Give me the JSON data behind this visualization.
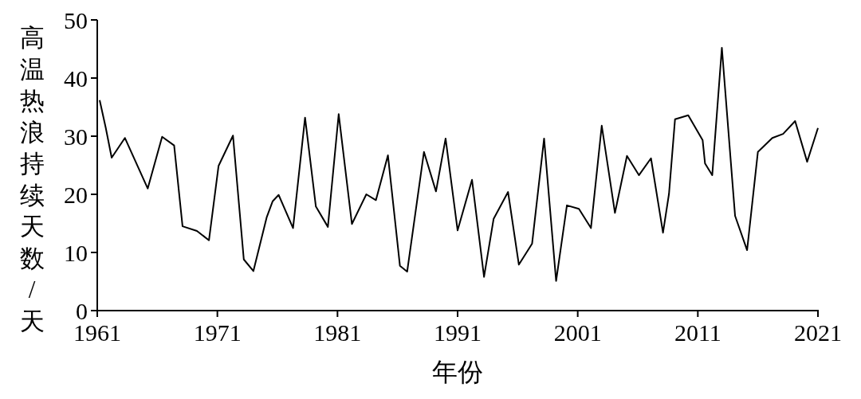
{
  "chart_data": {
    "type": "line",
    "xlabel": "年份",
    "ylabel": "高温热浪持续天数/天",
    "x": [
      1961.2,
      1961.7,
      1962.2,
      1963.3,
      1965.2,
      1966.4,
      1967.4,
      1968.1,
      1969.3,
      1970.3,
      1971.1,
      1972.3,
      1973.2,
      1974.0,
      1975.1,
      1975.6,
      1976.1,
      1977.3,
      1978.3,
      1979.2,
      1980.2,
      1981.1,
      1982.2,
      1983.4,
      1984.2,
      1985.2,
      1986.2,
      1986.8,
      1988.2,
      1989.2,
      1990.0,
      1991.0,
      1992.2,
      1993.2,
      1994.0,
      1995.2,
      1996.1,
      1997.2,
      1998.2,
      1999.2,
      2000.1,
      2001.1,
      2002.1,
      2003.0,
      2004.1,
      2005.1,
      2006.1,
      2007.1,
      2008.1,
      2008.6,
      2009.1,
      2010.2,
      2011.4,
      2011.6,
      2012.2,
      2013.0,
      2014.1,
      2015.1,
      2016.0,
      2017.2,
      2018.1,
      2019.1,
      2020.1,
      2021.0
    ],
    "series": [
      {
        "color": "#000000",
        "values": [
          36.2,
          31.5,
          26.3,
          29.7,
          21.0,
          29.9,
          28.4,
          14.5,
          13.7,
          12.1,
          24.9,
          30.1,
          8.8,
          6.8,
          16.0,
          18.8,
          19.9,
          14.2,
          33.2,
          17.9,
          14.4,
          33.8,
          14.9,
          20.0,
          19.0,
          26.7,
          7.7,
          6.7,
          27.3,
          20.5,
          29.6,
          13.8,
          22.5,
          5.8,
          15.8,
          20.4,
          7.9,
          11.5,
          29.6,
          5.1,
          18.1,
          17.5,
          14.2,
          31.8,
          16.8,
          26.6,
          23.3,
          26.2,
          13.4,
          20.1,
          32.9,
          33.6,
          29.3,
          25.3,
          23.3,
          45.2,
          16.3,
          10.4,
          27.3,
          29.7,
          30.4,
          32.6,
          25.6,
          31.4
        ]
      }
    ],
    "xlim": [
      1961,
      2021
    ],
    "xticks": [
      1961,
      1971,
      1981,
      1991,
      2001,
      2011,
      2021
    ],
    "ylim": [
      0,
      50
    ],
    "yticks": [
      0,
      10,
      20,
      30,
      40,
      50
    ],
    "grid": false,
    "marker": "none",
    "line_style": "solid"
  }
}
